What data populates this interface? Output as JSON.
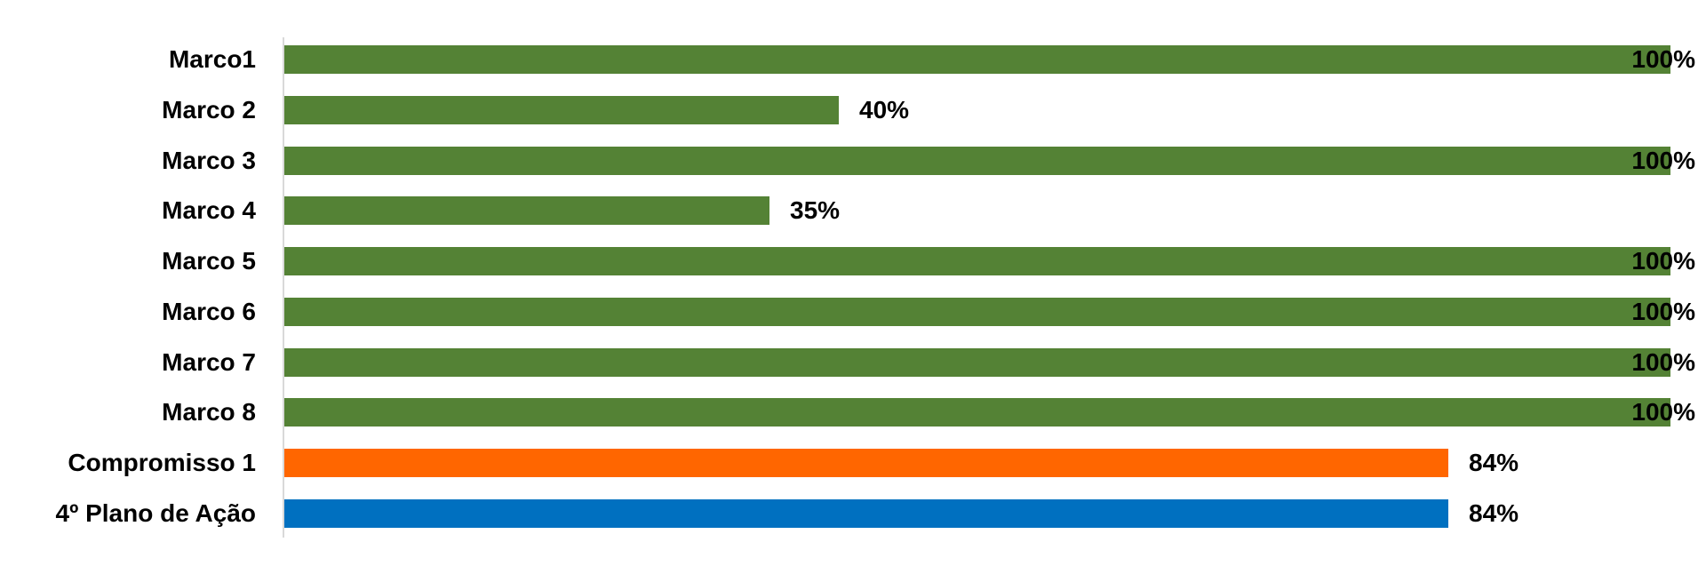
{
  "chart_data": {
    "type": "bar",
    "orientation": "horizontal",
    "title": "",
    "xlabel": "",
    "ylabel": "",
    "xlim": [
      0,
      100
    ],
    "grid": false,
    "legend": "none",
    "categories": [
      "Marco1",
      "Marco 2",
      "Marco 3",
      "Marco 4",
      "Marco 5",
      "Marco 6",
      "Marco 7",
      "Marco 8",
      "Compromisso 1",
      "4º Plano de Ação"
    ],
    "values": [
      100,
      40,
      100,
      35,
      100,
      100,
      100,
      100,
      84,
      84
    ],
    "value_labels": [
      "100%",
      "40%",
      "100%",
      "35%",
      "100%",
      "100%",
      "100%",
      "100%",
      "84%",
      "84%"
    ],
    "bar_colors": [
      "#548235",
      "#548235",
      "#548235",
      "#548235",
      "#548235",
      "#548235",
      "#548235",
      "#548235",
      "#FF6600",
      "#0070C0"
    ],
    "colors": {
      "green": "#548235",
      "orange": "#FF6600",
      "blue": "#0070C0",
      "axis_line": "#D9D9D9",
      "label_text": "#000000"
    }
  }
}
